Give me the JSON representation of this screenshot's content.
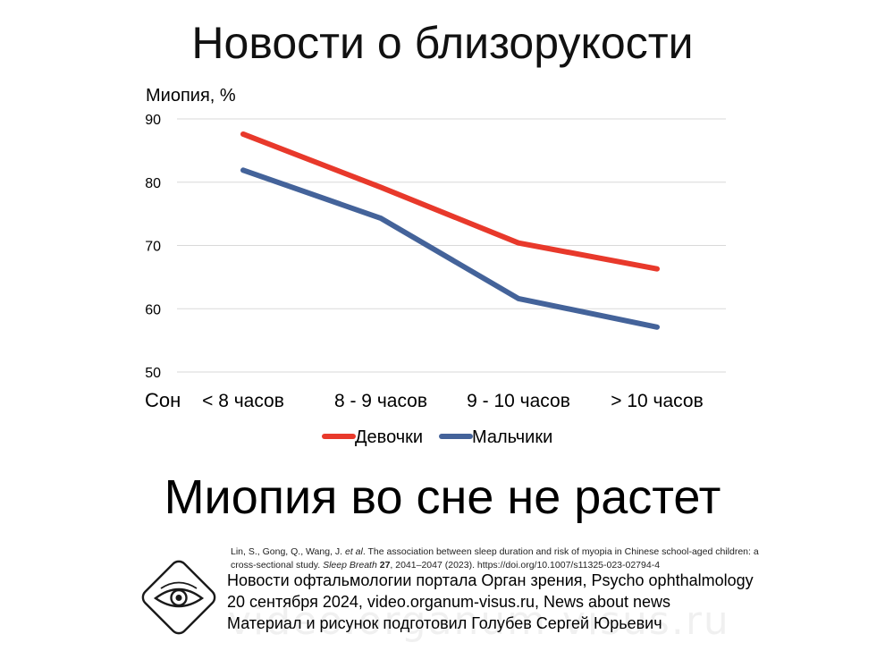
{
  "page_title": "Новости о близорукости",
  "subtitle": "Миопия во сне не растет",
  "chart_data": {
    "type": "line",
    "ylabel": "Миопия, %",
    "xlabel": "Сон",
    "categories": [
      "< 8 часов",
      "8 - 9 часов",
      "9 - 10 часов",
      "> 10 часов"
    ],
    "ylim": [
      50,
      90
    ],
    "yticks": [
      90,
      80,
      70,
      60,
      50
    ],
    "grid": true,
    "legend_position": "bottom",
    "series": [
      {
        "name": "Девочки",
        "color": "#e8392b",
        "values": [
          87.6,
          79.2,
          70.4,
          66.3
        ]
      },
      {
        "name": "Мальчики",
        "color": "#44639a",
        "values": [
          81.9,
          74.3,
          61.6,
          57.1
        ]
      }
    ]
  },
  "citation": {
    "text1": "Lin, S., Gong, Q., Wang, J. ",
    "etal": "et al",
    "text2": ". The association between sleep duration and risk of myopia in Chinese school-aged children: a cross-sectional study. ",
    "journal": "Sleep Breath",
    "volume": "27",
    "text3": ", 2041–2047 (2023). https://doi.org/10.1007/s11325-023-02794-4"
  },
  "footer": {
    "line1": "Новости офтальмологии портала Орган зрения, Psycho ophthalmology",
    "line2": "20 сентября 2024, video.organum-visus.ru, News about news",
    "line3": "Материал и рисунок подготовил Голубев Сергей Юрьевич"
  },
  "logo_icon": "eye-logo-icon",
  "watermark": "video.organum-visus.ru"
}
